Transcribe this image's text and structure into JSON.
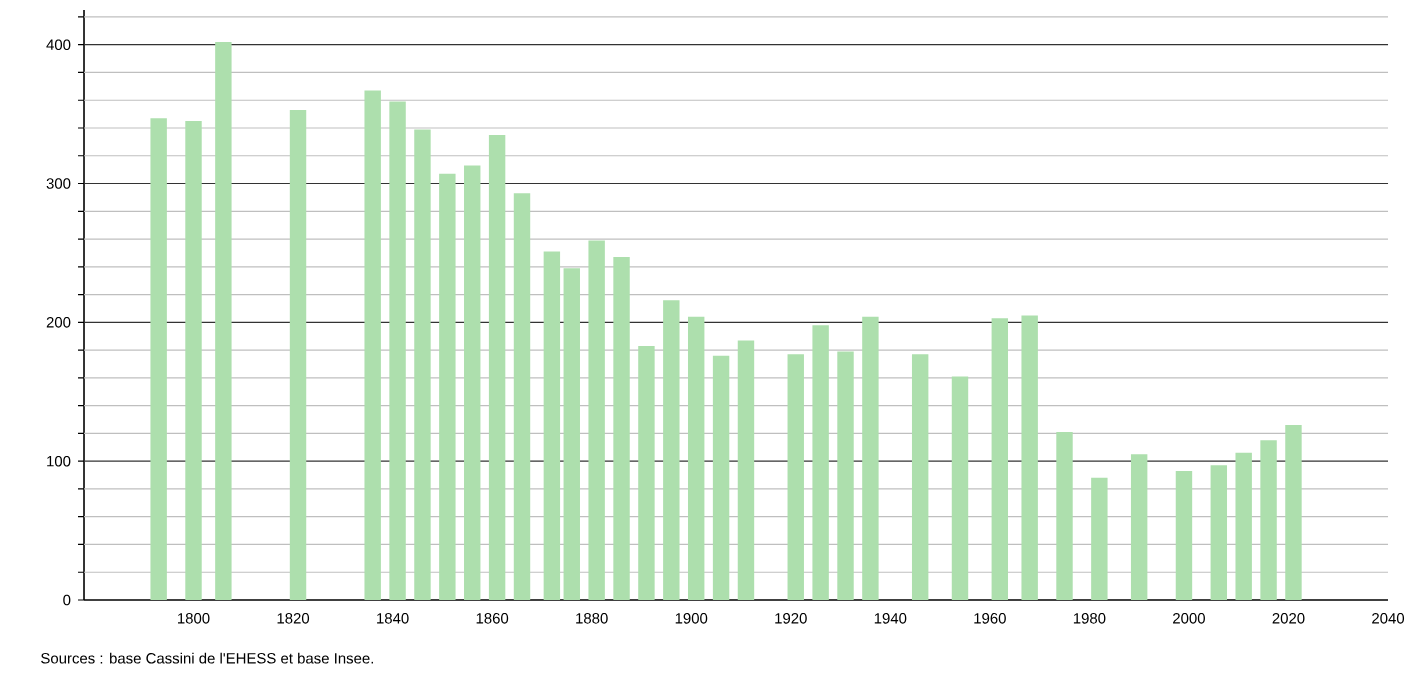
{
  "chart_data": {
    "type": "bar",
    "x": [
      1793,
      1800,
      1806,
      1821,
      1836,
      1841,
      1846,
      1851,
      1856,
      1861,
      1866,
      1872,
      1876,
      1881,
      1886,
      1891,
      1896,
      1901,
      1906,
      1911,
      1921,
      1926,
      1931,
      1936,
      1946,
      1954,
      1962,
      1968,
      1975,
      1982,
      1990,
      1999,
      2006,
      2011,
      2016,
      2021
    ],
    "values": [
      347,
      345,
      402,
      353,
      367,
      359,
      339,
      307,
      313,
      335,
      293,
      251,
      239,
      259,
      247,
      183,
      216,
      204,
      176,
      187,
      177,
      198,
      179,
      204,
      177,
      161,
      203,
      205,
      121,
      88,
      105,
      93,
      97,
      106,
      115,
      126
    ],
    "color": "#addfad",
    "xlim": [
      1778,
      2040
    ],
    "xticks": [
      1800,
      1820,
      1840,
      1860,
      1880,
      1900,
      1920,
      1940,
      1960,
      1980,
      2000,
      2020,
      2040
    ],
    "ylim": [
      0,
      425
    ],
    "yticks": [
      0,
      {
        "value": 20,
        "label": null
      },
      {
        "value": 40,
        "label": null
      },
      {
        "value": 60,
        "label": null
      },
      {
        "value": 80,
        "label": null
      },
      100,
      {
        "value": 120,
        "label": null
      },
      {
        "value": 140,
        "label": null
      },
      {
        "value": 160,
        "label": null
      },
      {
        "value": 180,
        "label": null
      },
      200,
      {
        "value": 220,
        "label": null
      },
      {
        "value": 240,
        "label": null
      },
      {
        "value": 260,
        "label": null
      },
      {
        "value": 280,
        "label": null
      },
      300,
      {
        "value": 320,
        "label": null
      },
      {
        "value": 340,
        "label": null
      },
      {
        "value": 360,
        "label": null
      },
      {
        "value": 380,
        "label": null
      },
      400,
      {
        "value": 420,
        "label": null
      }
    ],
    "grid": "y",
    "annotations": [
      "Sources : base Cassini de l'EHESS et base Insee."
    ]
  }
}
